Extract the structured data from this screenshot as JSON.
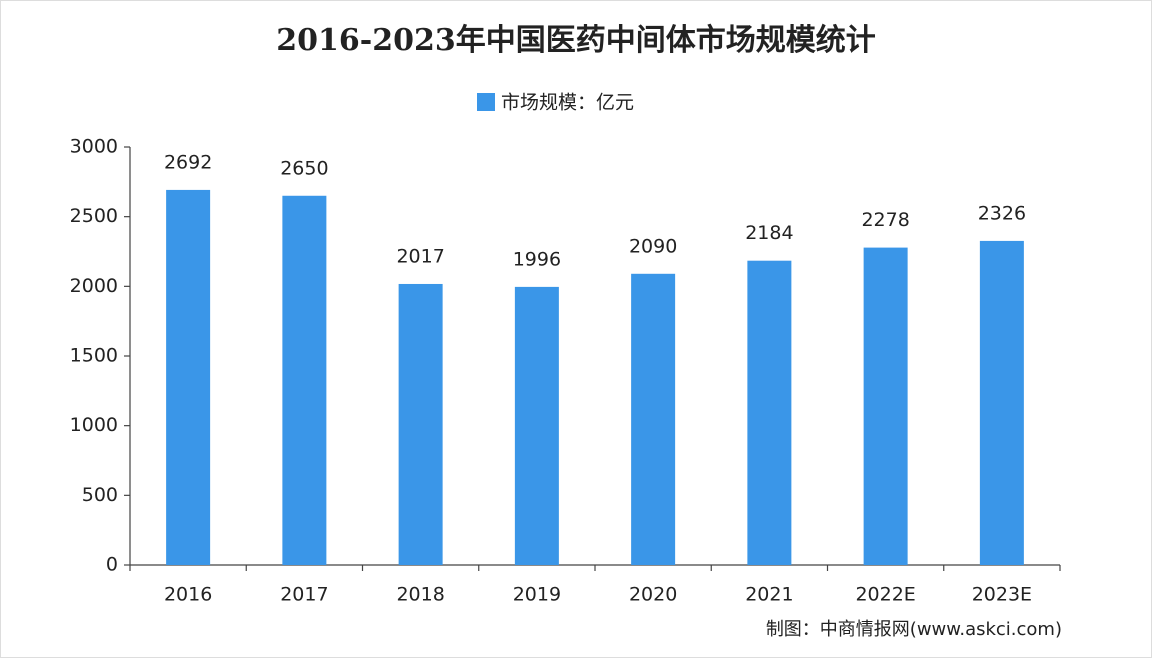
{
  "chart_data": {
    "type": "bar",
    "title": "2016-2023年中国医药中间体市场规模统计",
    "series": [
      {
        "name": "市场规模：亿元",
        "color": "#3a96e8",
        "values": [
          2692,
          2650,
          2017,
          1996,
          2090,
          2184,
          2278,
          2326
        ]
      }
    ],
    "categories": [
      "2016",
      "2017",
      "2018",
      "2019",
      "2020",
      "2021",
      "2022E",
      "2023E"
    ],
    "ylim": [
      0,
      3000
    ],
    "yticks": [
      0,
      500,
      1000,
      1500,
      2000,
      2500,
      3000
    ],
    "grid": false,
    "data_labels": true,
    "legend": "top",
    "source": "制图：中商情报网(www.askci.com)"
  }
}
